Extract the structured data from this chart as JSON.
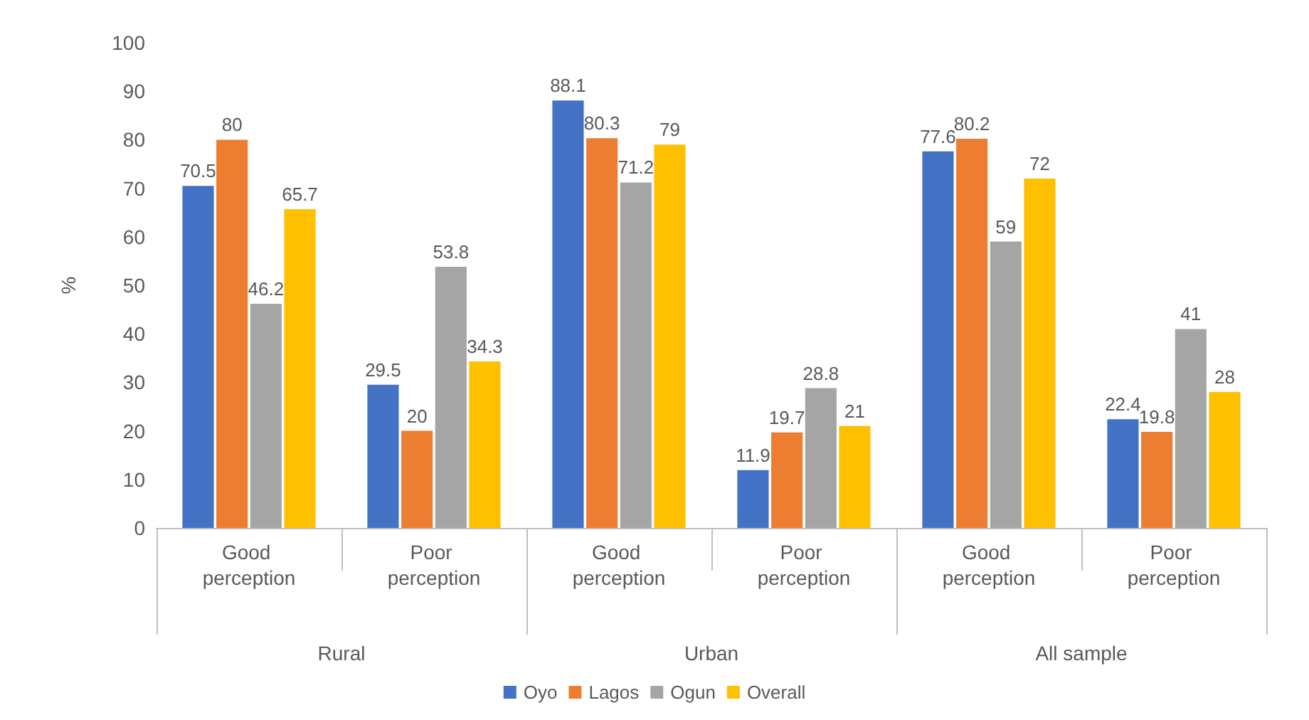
{
  "chart_data": {
    "type": "bar",
    "ylabel": "%",
    "categories": [
      "Good perception",
      "Poor perception",
      "Good perception",
      "Poor perception",
      "Good perception",
      "Poor perception"
    ],
    "annotations": [
      "Rural",
      "Urban",
      "All sample"
    ],
    "series": [
      {
        "name": "Oyo",
        "color": "#4472c4",
        "values": [
          70.5,
          29.5,
          88.1,
          11.9,
          77.6,
          22.4
        ]
      },
      {
        "name": "Lagos",
        "color": "#ed7d31",
        "values": [
          80,
          20,
          80.3,
          19.7,
          80.2,
          19.8
        ]
      },
      {
        "name": "Ogun",
        "color": "#a5a5a5",
        "values": [
          46.2,
          53.8,
          71.2,
          28.8,
          59,
          41
        ]
      },
      {
        "name": "Overall",
        "color": "#ffc000",
        "values": [
          65.7,
          34.3,
          79,
          21,
          72,
          28
        ]
      }
    ],
    "ylim": [
      0,
      100
    ],
    "yticks": [
      0,
      10,
      20,
      30,
      40,
      50,
      60,
      70,
      80,
      90,
      100
    ],
    "grid": false,
    "legend": "bottom",
    "data_labels": true
  }
}
